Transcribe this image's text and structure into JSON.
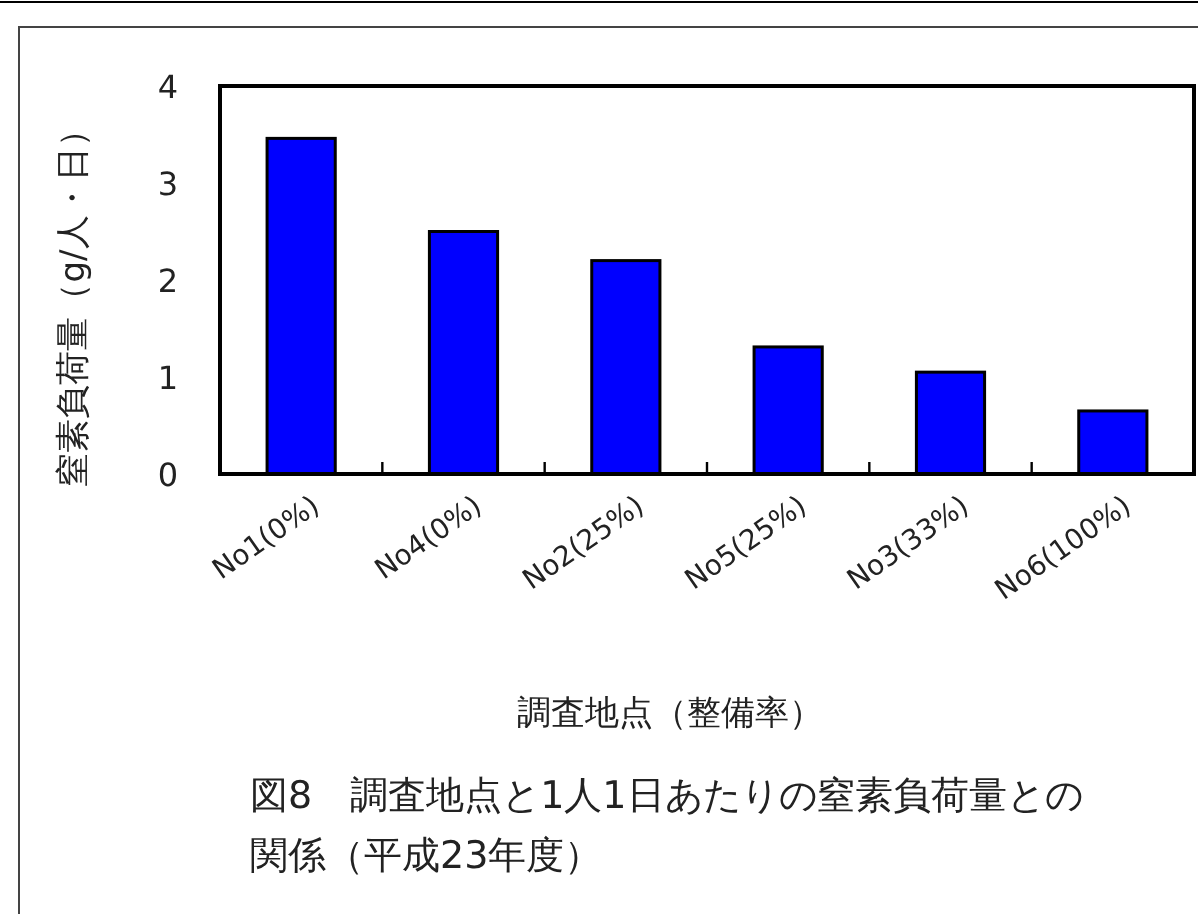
{
  "chart_data": {
    "type": "bar",
    "title": "図8　調査地点と1人1日あたりの窒素負荷量との関係（平成23年度）",
    "xlabel": "調査地点（整備率）",
    "ylabel": "窒素負荷量（g/人・日）",
    "categories": [
      "No1(0%)",
      "No4(0%)",
      "No2(25%)",
      "No5(25%)",
      "No3(33%)",
      "No6(100%)"
    ],
    "values": [
      3.46,
      2.5,
      2.2,
      1.31,
      1.05,
      0.65
    ],
    "color": "#0000ff",
    "ylim": [
      0,
      4
    ],
    "yticks": [
      0,
      1,
      2,
      3,
      4
    ]
  }
}
